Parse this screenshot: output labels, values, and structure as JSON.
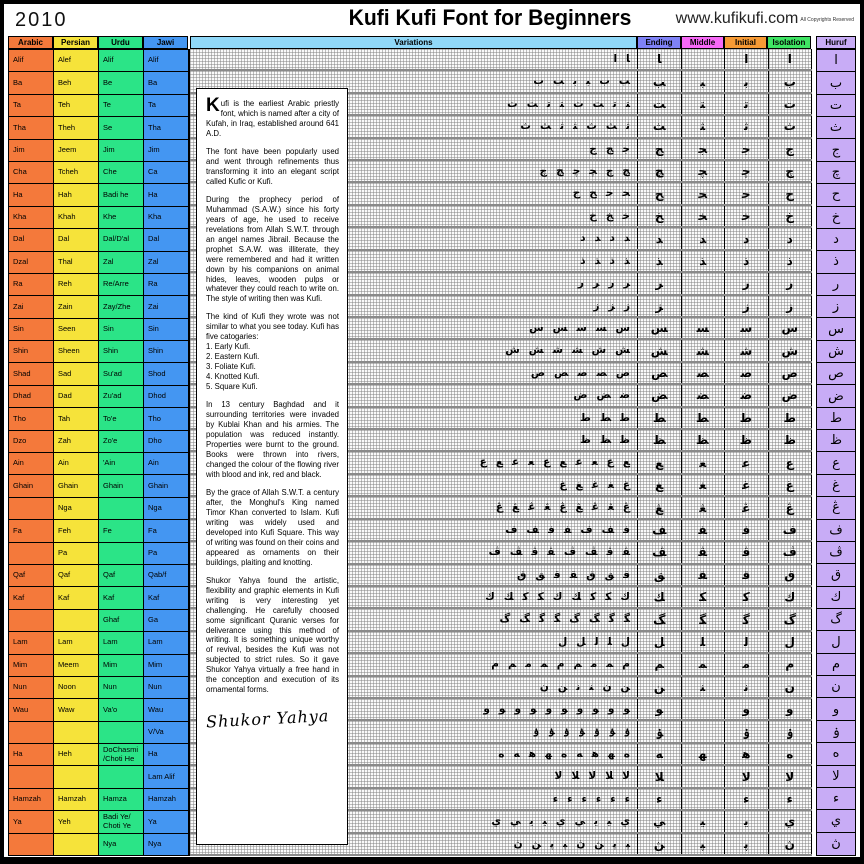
{
  "header": {
    "year": "2010",
    "title": "Kufi Kufi Font for Beginners",
    "website": "www.kufikufi.com",
    "copyright": "All Copyrights Reserved"
  },
  "table_headers": {
    "arabic": "Arabic",
    "persian": "Persian",
    "urdu": "Urdu",
    "jawi": "Jawi",
    "variations": "Variations",
    "ending": "Ending",
    "middle": "Middle",
    "initial": "Initial",
    "isolation": "Isolation",
    "huruf": "Huruf"
  },
  "colors": {
    "arabic_col": "#F4793B",
    "persian_col": "#F6E33A",
    "urdu_col": "#2BE487",
    "jawi_col": "#4496F2",
    "variations_header": "#90D8F8",
    "ending_header": "#7F82F6",
    "middle_header": "#F669F6",
    "initial_header": "#F69A35",
    "isolation_header": "#3FE463",
    "huruf_col": "#C8ACF6",
    "glyph_ink": "#000000"
  },
  "article": {
    "drop_cap": "K",
    "paragraphs": [
      "ufi is the earliest Arabic priestly font, which is named after a city of Kufah, in Iraq, established around 641 A.D.",
      "The font have been popularly used and went through refinements thus transforming it into an elegant script called Kufic or Kufi.",
      "During the prophecy period of Muhammad (S.A.W.) since his forty years of age, he used to receive revelations from Allah S.W.T. through an angel names Jibrail. Because the prophet S.A.W. was illiterate, they were remembered and had it written down by his companions on animal hides, leaves, wooden pulps or whatever they could reach to write on.  The style of writing then was Kufi.",
      "The kind of Kufi they wrote was not similar to what you see today. Kufi has five catogaries:\n1. Early Kufi.\n2. Eastern Kufi.\n3. Foliate Kufi.\n4. Knotted Kufi.\n5. Square Kufi.",
      "In 13 century Baghdad and it surrounding territories were invaded by Kublai Khan and his armies. The population was reduced instantly. Properties were burnt to the ground. Books were thrown into rivers, changed the colour of the flowing river with blood and ink, red and black.",
      "By the grace of Allah S.W.T. a century after, the Monghul's King named Timor Khan converted to Islam. Kufi writing was widely used and developed into Kufi Square. This way of writing was found on their coins and appeared as ornaments on their buildings, plaiting and knotting.",
      "Shukor Yahya found the artistic, flexibility and graphic elements in Kufi writing is very interesting yet challenging. He carefully choosed some significant Quranic verses for deliverance using this method of writing. It is something unique worthy of revival, besides the Kufi was not subjected to strict rules. So it gave Shukor Yahya virtually a free hand in the conception and execution of its ornamental forms."
    ],
    "signature": "Shukor Yahya"
  },
  "rows": [
    {
      "arabic": "Alif",
      "persian": "Alef",
      "urdu": "Alif",
      "jawi": "Alif",
      "huruf": "ا",
      "variations": 2,
      "middle_empty": true
    },
    {
      "arabic": "Ba",
      "persian": "Beh",
      "urdu": "Be",
      "jawi": "Ba",
      "huruf": "ب",
      "variations": 6,
      "middle_empty": false
    },
    {
      "arabic": "Ta",
      "persian": "Teh",
      "urdu": "Te",
      "jawi": "Ta",
      "huruf": "ت",
      "variations": 8,
      "middle_empty": false
    },
    {
      "arabic": "Tha",
      "persian": "Theh",
      "urdu": "Se",
      "jawi": "Tha",
      "huruf": "ث",
      "variations": 7,
      "middle_empty": false
    },
    {
      "arabic": "Jim",
      "persian": "Jeem",
      "urdu": "Jim",
      "jawi": "Jim",
      "huruf": "ج",
      "variations": 3,
      "middle_empty": false
    },
    {
      "arabic": "Cha",
      "persian": "Tcheh",
      "urdu": "Che",
      "jawi": "Ca",
      "huruf": "چ",
      "variations": 6,
      "middle_empty": false
    },
    {
      "arabic": "Ha",
      "persian": "Hah",
      "urdu": "Badi he",
      "jawi": "Ha",
      "huruf": "ح",
      "variations": 4,
      "middle_empty": false
    },
    {
      "arabic": "Kha",
      "persian": "Khah",
      "urdu": "Khe",
      "jawi": "Kha",
      "huruf": "خ",
      "variations": 3,
      "middle_empty": false
    },
    {
      "arabic": "Dal",
      "persian": "Dal",
      "urdu": "Dal/D'al",
      "jawi": "Dal",
      "huruf": "د",
      "variations": 4,
      "middle_empty": false
    },
    {
      "arabic": "Dzal",
      "persian": "Thal",
      "urdu": "Zal",
      "jawi": "Zal",
      "huruf": "ذ",
      "variations": 4,
      "middle_empty": false
    },
    {
      "arabic": "Ra",
      "persian": "Reh",
      "urdu": "Re/Arre",
      "jawi": "Ra",
      "huruf": "ر",
      "variations": 4,
      "middle_empty": true
    },
    {
      "arabic": "Zai",
      "persian": "Zain",
      "urdu": "Zay/Zhe",
      "jawi": "Zai",
      "huruf": "ز",
      "variations": 3,
      "middle_empty": true
    },
    {
      "arabic": "Sin",
      "persian": "Seen",
      "urdu": "Sin",
      "jawi": "Sin",
      "huruf": "س",
      "variations": 5,
      "middle_empty": false
    },
    {
      "arabic": "Shin",
      "persian": "Sheen",
      "urdu": "Shin",
      "jawi": "Shin",
      "huruf": "ش",
      "variations": 6,
      "middle_empty": false
    },
    {
      "arabic": "Shad",
      "persian": "Sad",
      "urdu": "Su'ad",
      "jawi": "Shod",
      "huruf": "ص",
      "variations": 5,
      "middle_empty": false
    },
    {
      "arabic": "Dhad",
      "persian": "Dad",
      "urdu": "Zu'ad",
      "jawi": "Dhod",
      "huruf": "ض",
      "variations": 3,
      "middle_empty": false
    },
    {
      "arabic": "Tho",
      "persian": "Tah",
      "urdu": "To'e",
      "jawi": "Tho",
      "huruf": "ط",
      "variations": 3,
      "middle_empty": false
    },
    {
      "arabic": "Dzo",
      "persian": "Zah",
      "urdu": "Zo'e",
      "jawi": "Dho",
      "huruf": "ظ",
      "variations": 3,
      "middle_empty": false
    },
    {
      "arabic": "Ain",
      "persian": "Ain",
      "urdu": "'Ain",
      "jawi": "Ain",
      "huruf": "ع",
      "variations": 10,
      "middle_empty": false
    },
    {
      "arabic": "Ghain",
      "persian": "Ghain",
      "urdu": "Ghain",
      "jawi": "Ghain",
      "huruf": "غ",
      "variations": 5,
      "middle_empty": false
    },
    {
      "arabic": "",
      "persian": "Nga",
      "urdu": "",
      "jawi": "Nga",
      "huruf": "ڠ",
      "variations": 9,
      "middle_empty": false
    },
    {
      "arabic": "Fa",
      "persian": "Feh",
      "urdu": "Fe",
      "jawi": "Fa",
      "huruf": "ف",
      "variations": 7,
      "middle_empty": false
    },
    {
      "arabic": "",
      "persian": "Pa",
      "urdu": "",
      "jawi": "Pa",
      "huruf": "ڤ",
      "variations": 8,
      "middle_empty": false
    },
    {
      "arabic": "Qaf",
      "persian": "Qaf",
      "urdu": "Qaf",
      "jawi": "Qab/f",
      "huruf": "ق",
      "variations": 7,
      "middle_empty": false
    },
    {
      "arabic": "Kaf",
      "persian": "Kaf",
      "urdu": "Kaf",
      "jawi": "Kaf",
      "huruf": "ك",
      "variations": 9,
      "middle_empty": false
    },
    {
      "arabic": "",
      "persian": "",
      "urdu": "Ghaf",
      "jawi": "Ga",
      "huruf": "گ",
      "variations": 8,
      "middle_empty": false
    },
    {
      "arabic": "Lam",
      "persian": "Lam",
      "urdu": "Lam",
      "jawi": "Lam",
      "huruf": "ل",
      "variations": 5,
      "middle_empty": false
    },
    {
      "arabic": "Mim",
      "persian": "Meem",
      "urdu": "Mim",
      "jawi": "Mim",
      "huruf": "م",
      "variations": 9,
      "middle_empty": false
    },
    {
      "arabic": "Nun",
      "persian": "Noon",
      "urdu": "Nun",
      "jawi": "Nun",
      "huruf": "ن",
      "variations": 6,
      "middle_empty": false
    },
    {
      "arabic": "Wau",
      "persian": "Waw",
      "urdu": "Va'o",
      "jawi": "Wau",
      "huruf": "و",
      "variations": 10,
      "middle_empty": true
    },
    {
      "arabic": "",
      "persian": "",
      "urdu": "",
      "jawi": "V/Va",
      "huruf": "ۏ",
      "variations": 7,
      "middle_empty": true
    },
    {
      "arabic": "Ha",
      "persian": "Heh",
      "urdu": "DoChasmi /Choti He",
      "jawi": "Ha",
      "huruf": "ه",
      "variations": 9,
      "middle_empty": false
    },
    {
      "arabic": "",
      "persian": "",
      "urdu": "",
      "jawi": "Lam Alif",
      "huruf": "لا",
      "variations": 5,
      "middle_empty": true
    },
    {
      "arabic": "Hamzah",
      "persian": "Hamzah",
      "urdu": "Hamza",
      "jawi": "Hamzah",
      "huruf": "ء",
      "variations": 6,
      "middle_empty": true
    },
    {
      "arabic": "Ya",
      "persian": "Yeh",
      "urdu": "Badi Ye/ Choti Ye",
      "jawi": "Ya",
      "huruf": "ي",
      "variations": 9,
      "middle_empty": false
    },
    {
      "arabic": "",
      "persian": "",
      "urdu": "Nya",
      "jawi": "Nya",
      "huruf": "ڽ",
      "variations": 8,
      "middle_empty": false
    }
  ]
}
